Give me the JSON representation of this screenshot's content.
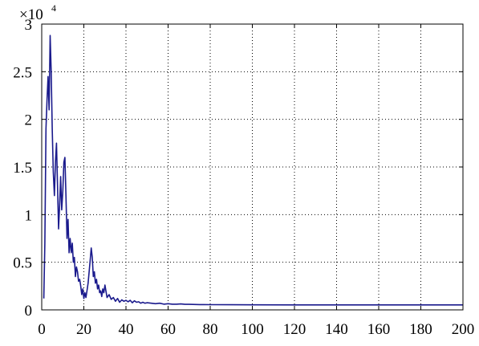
{
  "chart_data": {
    "type": "line",
    "xlim": [
      0,
      200
    ],
    "ylim": [
      0,
      30000
    ],
    "x_ticks": [
      0,
      20,
      40,
      60,
      80,
      100,
      120,
      140,
      160,
      180,
      200
    ],
    "y_ticks": [
      0,
      5000,
      10000,
      15000,
      20000,
      25000,
      30000
    ],
    "y_tick_labels": [
      "0",
      "0.5",
      "1",
      "1.5",
      "2",
      "2.5",
      "3"
    ],
    "x_tick_labels": [
      "0",
      "20",
      "40",
      "60",
      "80",
      "100",
      "120",
      "140",
      "160",
      "180",
      "200"
    ],
    "y_exponent_base": "×10",
    "y_exponent_power": "4",
    "grid": true,
    "grid_style": "dotted",
    "series": [
      {
        "color": "#1a1a8c",
        "x": [
          1,
          1.5,
          2,
          2.5,
          3,
          3.5,
          4,
          4.5,
          5,
          5.5,
          6,
          6.5,
          7,
          7.5,
          8,
          8.5,
          9,
          9.5,
          10,
          10.5,
          11,
          11.5,
          12,
          12.5,
          13,
          13.5,
          14,
          14.5,
          15,
          15.5,
          16,
          16.5,
          17,
          17.5,
          18,
          18.5,
          19,
          19.5,
          20,
          20.5,
          21,
          21.5,
          22,
          22.5,
          23,
          23.5,
          24,
          24.5,
          25,
          25.5,
          26,
          26.5,
          27,
          27.5,
          28,
          28.5,
          29,
          29.5,
          30,
          31,
          32,
          33,
          34,
          35,
          36,
          37,
          38,
          39,
          40,
          41,
          42,
          43,
          44,
          45,
          46,
          47,
          48,
          49,
          50,
          52,
          54,
          56,
          58,
          60,
          62,
          64,
          66,
          68,
          70,
          75,
          80,
          90,
          100,
          120,
          140,
          160,
          180,
          200
        ],
        "y": [
          1200,
          7000,
          19000,
          22000,
          24500,
          21000,
          28800,
          25000,
          19000,
          14500,
          12000,
          15500,
          17500,
          13000,
          8500,
          11000,
          14000,
          10500,
          12500,
          15500,
          16000,
          12000,
          7500,
          9500,
          6000,
          7500,
          6000,
          7000,
          5000,
          5500,
          3500,
          4500,
          4000,
          3000,
          3200,
          2500,
          1600,
          2200,
          1200,
          1800,
          1300,
          2000,
          2800,
          4000,
          5200,
          6500,
          5500,
          3500,
          4000,
          2800,
          3200,
          2200,
          2600,
          1800,
          2000,
          1400,
          2200,
          1800,
          2600,
          1300,
          1600,
          1100,
          1300,
          900,
          1200,
          800,
          1050,
          900,
          1000,
          850,
          1000,
          750,
          950,
          800,
          850,
          700,
          800,
          700,
          750,
          700,
          650,
          700,
          600,
          650,
          600,
          600,
          620,
          580,
          580,
          560,
          550,
          540,
          530,
          520,
          520,
          520,
          520,
          520
        ]
      }
    ]
  }
}
